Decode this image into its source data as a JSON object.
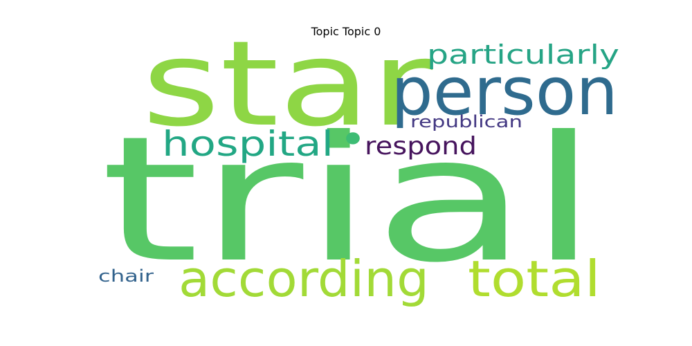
{
  "title": "Topic Topic 0",
  "words": [
    {
      "text": "trial",
      "color": "#57c766"
    },
    {
      "text": "star",
      "color": "#8ed645"
    },
    {
      "text": "person",
      "color": "#2f6b8e"
    },
    {
      "text": "according",
      "color": "#a2da37"
    },
    {
      "text": "total",
      "color": "#b0dd2f"
    },
    {
      "text": "hospital",
      "color": "#22a784"
    },
    {
      "text": "particularly",
      "color": "#26a485"
    },
    {
      "text": "respond",
      "color": "#46145d"
    },
    {
      "text": "republican",
      "color": "#443983"
    },
    {
      "text": "chair",
      "color": "#33638d"
    },
    {
      "text": "•",
      "color": "#3dbc74"
    }
  ]
}
